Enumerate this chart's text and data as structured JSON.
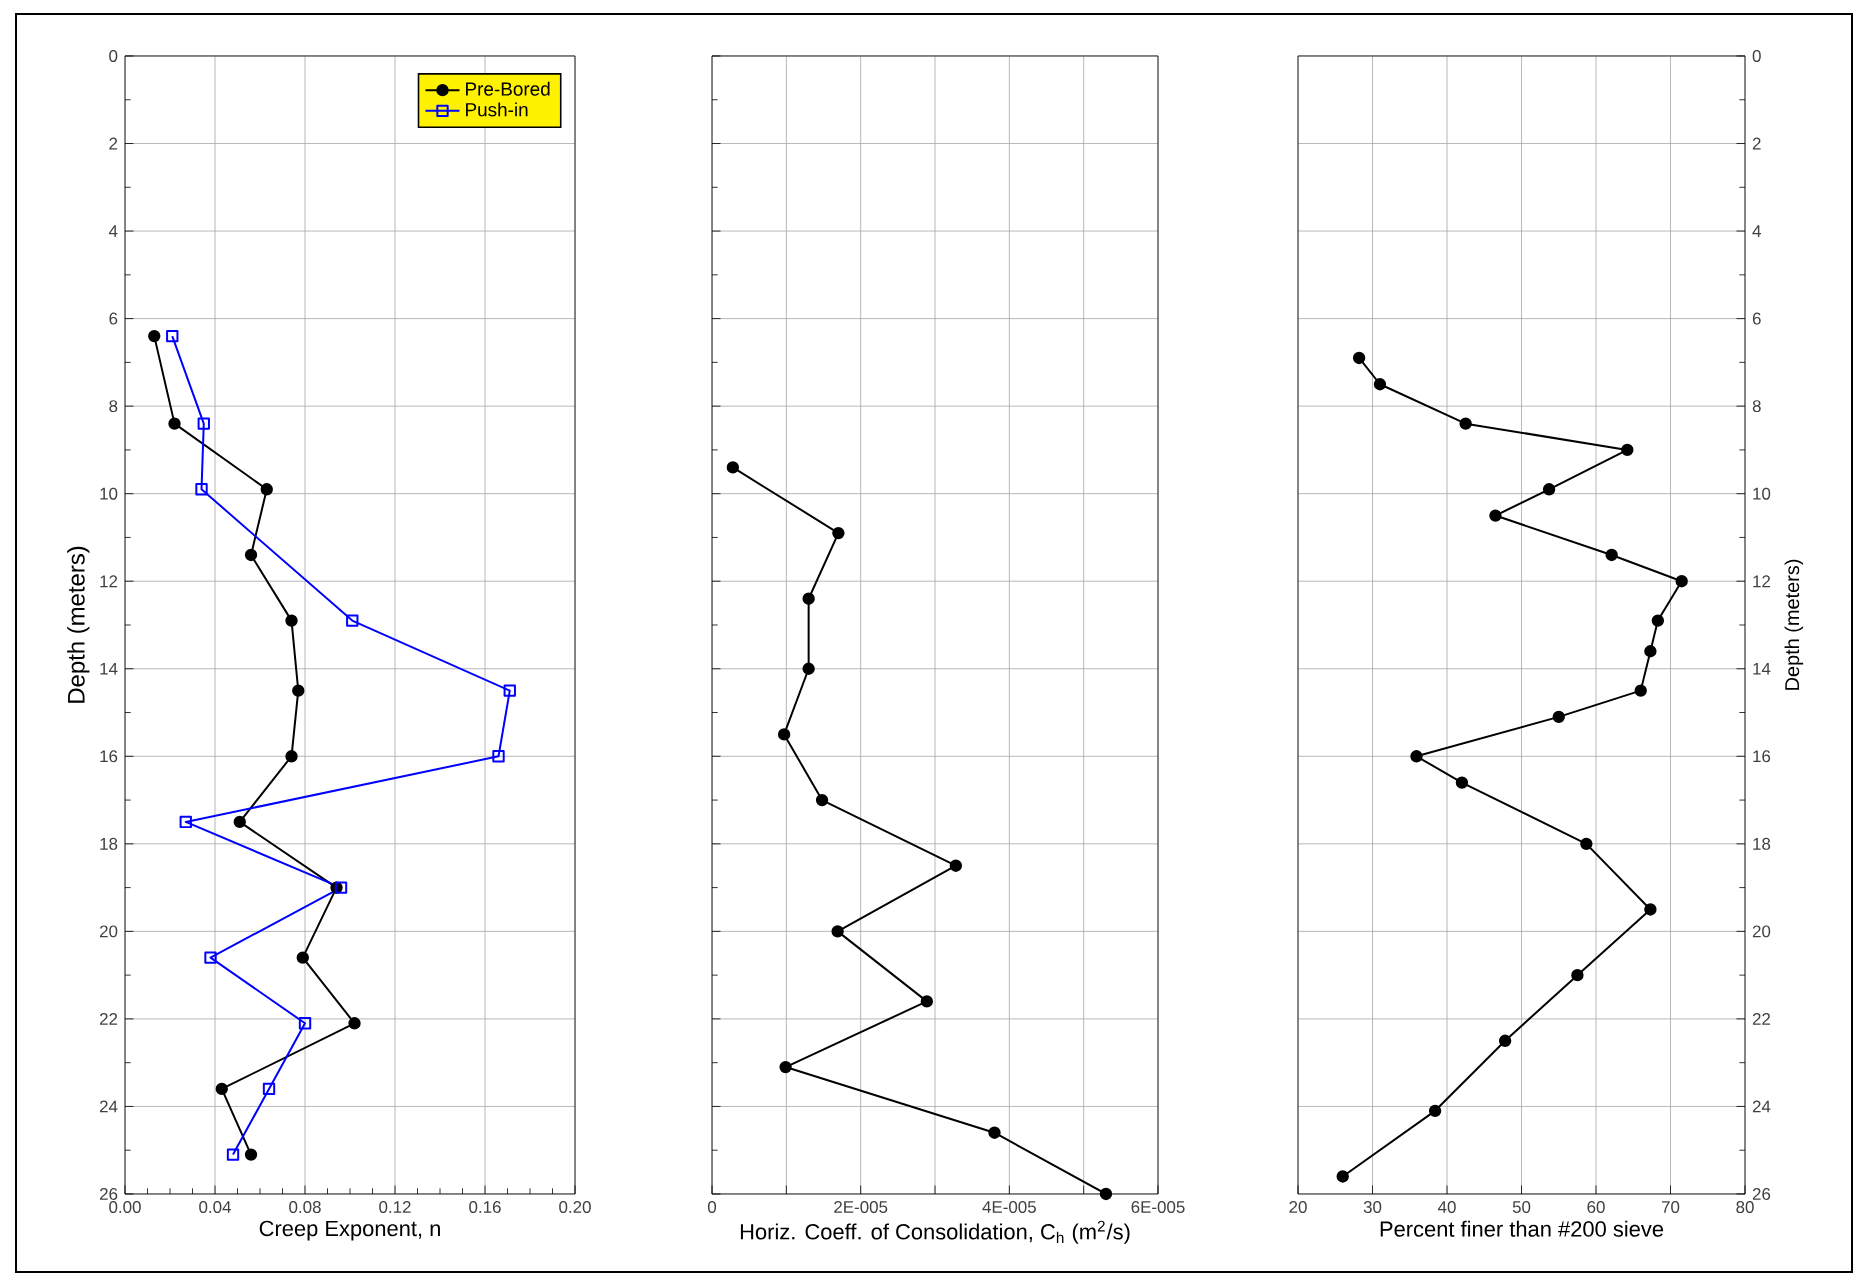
{
  "chart_data": [
    {
      "type": "line",
      "xlabel": "Creep Exponent, n",
      "ylabel": "Depth (meters)",
      "xlim": [
        0,
        0.2
      ],
      "xticks": [
        {
          "value": 0,
          "label": "0.00"
        },
        0.04,
        0.08,
        0.12,
        0.16,
        {
          "value": 0.2,
          "label": "0.20"
        }
      ],
      "ylim": [
        26,
        0
      ],
      "yticks": [
        0,
        2,
        4,
        6,
        8,
        10,
        12,
        14,
        16,
        18,
        20,
        22,
        24,
        26
      ],
      "grid": true,
      "legend": "top right",
      "series": [
        {
          "name": "Pre-Bored",
          "color": "#000000",
          "marker": "circle",
          "x": [
            0.013,
            0.022,
            0.063,
            0.056,
            0.074,
            0.077,
            0.074,
            0.051,
            0.094,
            0.079,
            0.102,
            0.043,
            0.056
          ],
          "values": [
            6.4,
            8.4,
            9.9,
            11.4,
            12.9,
            14.5,
            16.0,
            17.5,
            19.0,
            20.6,
            22.1,
            23.6,
            25.1
          ]
        },
        {
          "name": "Push-in",
          "color": "#0000ff",
          "marker": "square",
          "x": [
            0.021,
            0.035,
            0.034,
            0.101,
            0.171,
            0.166,
            0.027,
            0.096,
            0.038,
            0.08,
            0.064,
            0.048
          ],
          "values": [
            6.4,
            8.4,
            9.9,
            12.9,
            14.5,
            16.0,
            17.5,
            19.0,
            20.6,
            22.1,
            23.6,
            25.1
          ]
        }
      ]
    },
    {
      "type": "line",
      "xlabel": "Horiz. Coeff. of Consolidation, C$_{h}$ (m$^{2}$/s)",
      "xlim": [
        0,
        6e-05
      ],
      "xticks": [
        0,
        {
          "value": 1e-05,
          "label": null
        },
        {
          "value": 2e-05,
          "label": "2E-005"
        },
        {
          "value": 3e-05,
          "label": null
        },
        {
          "value": 4e-05,
          "label": "4E-005"
        },
        {
          "value": 5e-05,
          "label": null
        },
        {
          "value": 6e-05,
          "label": "6E-005"
        }
      ],
      "ylim": [
        26,
        0
      ],
      "yticks": [
        0,
        2,
        4,
        6,
        8,
        10,
        12,
        14,
        16,
        18,
        20,
        22,
        24,
        26
      ],
      "grid": true,
      "tick_labels": "x",
      "series": [
        {
          "color": "#000000",
          "marker": "circle",
          "x": [
            2.8e-06,
            1.7e-05,
            1.3e-05,
            1.3e-05,
            9.7e-06,
            1.48e-05,
            3.28e-05,
            1.69e-05,
            2.89e-05,
            9.9e-06,
            3.8e-05,
            5.3e-05
          ],
          "values": [
            9.4,
            10.9,
            12.4,
            14.0,
            15.5,
            17.0,
            18.5,
            20.0,
            21.6,
            23.1,
            24.6,
            26.0
          ]
        }
      ]
    },
    {
      "type": "line",
      "xlabel": "Percent finer than #200 sieve",
      "y2label": "Depth (meters)",
      "xlim": [
        20,
        80
      ],
      "xticks": [
        20,
        30,
        40,
        50,
        60,
        70,
        80
      ],
      "y2lim": [
        26,
        0
      ],
      "y2ticks": [
        0,
        2,
        4,
        6,
        8,
        10,
        12,
        14,
        16,
        18,
        20,
        22,
        24,
        26
      ],
      "grid": true,
      "series": [
        {
          "color": "#000000",
          "marker": "circle",
          "axis": "y2",
          "x": [
            28.2,
            31.0,
            42.5,
            64.2,
            53.7,
            46.5,
            62.1,
            71.5,
            68.3,
            67.3,
            66.0,
            55.0,
            35.9,
            42.0,
            58.7,
            67.3,
            57.5,
            47.8,
            38.4,
            26.0
          ],
          "values": [
            6.9,
            7.5,
            8.4,
            9.0,
            9.9,
            10.5,
            11.4,
            12.0,
            12.9,
            13.6,
            14.5,
            15.1,
            16.0,
            16.6,
            18.0,
            19.5,
            21.0,
            22.5,
            24.1,
            25.6
          ]
        }
      ]
    }
  ]
}
